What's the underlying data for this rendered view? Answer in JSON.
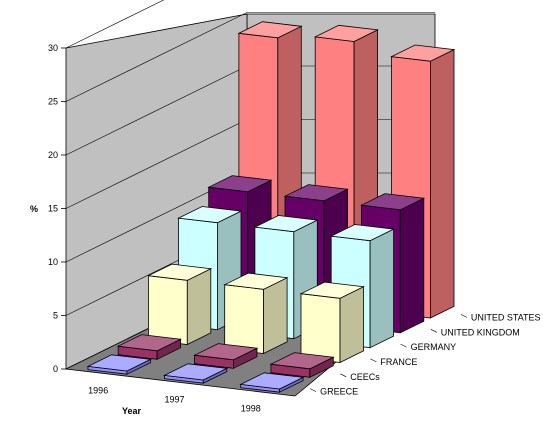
{
  "chart_data": {
    "type": "bar",
    "title": "",
    "xlabel": "Year",
    "ylabel": "%",
    "ylim": [
      0,
      30
    ],
    "yticks": [
      0,
      5,
      10,
      15,
      20,
      25,
      30
    ],
    "categories": [
      "1996",
      "1997",
      "1998"
    ],
    "grid": true,
    "series": [
      {
        "name": "GREECE",
        "values": [
          0.3,
          0.3,
          0.3
        ],
        "color": "#8f8fff"
      },
      {
        "name": "CEECs",
        "values": [
          0.8,
          0.8,
          0.8
        ],
        "color": "#993366"
      },
      {
        "name": "FRANCE",
        "values": [
          6,
          6,
          6
        ],
        "color": "#ffffcc"
      },
      {
        "name": "GERMANY",
        "values": [
          10,
          10,
          10
        ],
        "color": "#ccffff"
      },
      {
        "name": "UNITED KINGDOM",
        "values": [
          11.5,
          11.5,
          11.5
        ],
        "color": "#660066"
      },
      {
        "name": "UNITED STATES",
        "values": [
          24.5,
          25,
          24
        ],
        "color": "#ff8080"
      }
    ]
  }
}
